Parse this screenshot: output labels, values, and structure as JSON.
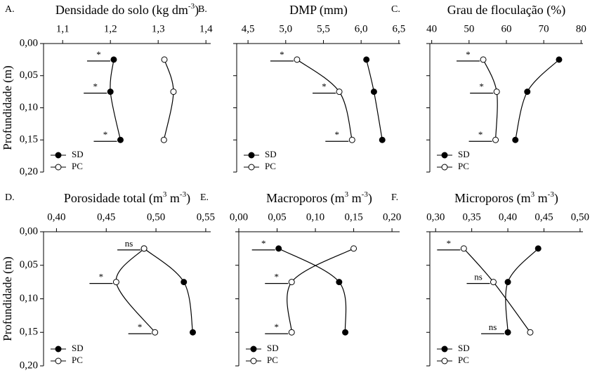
{
  "chart_data": [
    {
      "type": "line",
      "panel_label": "A.",
      "title": [
        {
          "text": "Densidade do solo (kg dm"
        },
        {
          "sup": "-3"
        },
        {
          "text": ")"
        }
      ],
      "y_label": "Profundidade (m)",
      "depths": [
        0.025,
        0.075,
        0.15
      ],
      "xlim": [
        1.06,
        1.41
      ],
      "xticks": [
        {
          "value": 1.1,
          "label": "1,1"
        },
        {
          "value": 1.2,
          "label": "1,2"
        },
        {
          "value": 1.3,
          "label": "1,3"
        },
        {
          "value": 1.4,
          "label": "1,4"
        }
      ],
      "ylim": [
        0,
        0.2
      ],
      "y_inverted": true,
      "yticks": [
        {
          "value": 0,
          "label": "0,00"
        },
        {
          "value": 0.05,
          "label": "0,05"
        },
        {
          "value": 0.1,
          "label": "0,10"
        },
        {
          "value": 0.15,
          "label": "0,15"
        },
        {
          "value": 0.2,
          "label": "0,20"
        }
      ],
      "series": [
        {
          "name": "SD",
          "color": "#000000",
          "filled": true,
          "values": [
            1.207,
            1.2,
            1.221
          ]
        },
        {
          "name": "PC",
          "color": "#000000",
          "filled": false,
          "values": [
            1.313,
            1.332,
            1.312
          ]
        }
      ],
      "significance": [
        "*",
        "*",
        "*"
      ],
      "legend": "lower left"
    },
    {
      "type": "line",
      "panel_label": "B.",
      "title": [
        {
          "text": "DMP (mm)"
        }
      ],
      "depths": [
        0.025,
        0.075,
        0.15
      ],
      "xlim": [
        4.35,
        6.52
      ],
      "xticks": [
        {
          "value": 4.5,
          "label": "4,5"
        },
        {
          "value": 5,
          "label": "5,0"
        },
        {
          "value": 5.5,
          "label": "5,5"
        },
        {
          "value": 6,
          "label": "6,0"
        },
        {
          "value": 6.5,
          "label": "6,5"
        }
      ],
      "ylim": [
        0,
        0.2
      ],
      "y_inverted": true,
      "yticks": [
        0,
        0.05,
        0.1,
        0.15,
        0.2
      ],
      "series": [
        {
          "name": "SD",
          "color": "#000000",
          "filled": true,
          "values": [
            6.07,
            6.17,
            6.28
          ]
        },
        {
          "name": "PC",
          "color": "#000000",
          "filled": false,
          "values": [
            5.15,
            5.71,
            5.88
          ]
        }
      ],
      "significance": [
        "*",
        "*",
        "*"
      ],
      "legend": "lower left"
    },
    {
      "type": "line",
      "panel_label": "C.",
      "title": [
        {
          "text": "Grau de floculação (%)"
        }
      ],
      "depths": [
        0.025,
        0.075,
        0.15
      ],
      "xlim": [
        39.5,
        80.5
      ],
      "xticks": [
        40,
        50,
        60,
        70,
        80
      ],
      "ylim": [
        0,
        0.2
      ],
      "y_inverted": true,
      "yticks": [
        0,
        0.05,
        0.1,
        0.15,
        0.2
      ],
      "series": [
        {
          "name": "SD",
          "color": "#000000",
          "filled": true,
          "values": [
            74.1,
            65.6,
            62.4
          ]
        },
        {
          "name": "PC",
          "color": "#000000",
          "filled": false,
          "values": [
            53.8,
            57.4,
            57.1
          ]
        }
      ],
      "significance": [
        "*",
        "*",
        "*"
      ],
      "legend": "lower left"
    },
    {
      "type": "line",
      "panel_label": "D.",
      "title": [
        {
          "text": "Porosidade total (m"
        },
        {
          "sup": "3"
        },
        {
          "text": " m"
        },
        {
          "sup": "-3"
        },
        {
          "text": ")"
        }
      ],
      "y_label": "Profundidade (m)",
      "depths": [
        0.025,
        0.075,
        0.15
      ],
      "xlim": [
        0.387,
        0.555
      ],
      "xticks": [
        {
          "value": 0.4,
          "label": "0,40"
        },
        {
          "value": 0.45,
          "label": "0,45"
        },
        {
          "value": 0.5,
          "label": "0,50"
        },
        {
          "value": 0.55,
          "label": "0,55"
        }
      ],
      "ylim": [
        0,
        0.2
      ],
      "y_inverted": true,
      "yticks": [
        {
          "value": 0,
          "label": "0,00"
        },
        {
          "value": 0.05,
          "label": "0,05"
        },
        {
          "value": 0.1,
          "label": "0,10"
        },
        {
          "value": 0.15,
          "label": "0,15"
        },
        {
          "value": 0.2,
          "label": "0,20"
        }
      ],
      "series": [
        {
          "name": "SD",
          "color": "#000000",
          "filled": true,
          "values": [
            0.488,
            0.528,
            0.537
          ]
        },
        {
          "name": "PC",
          "color": "#000000",
          "filled": false,
          "values": [
            0.488,
            0.46,
            0.499
          ]
        }
      ],
      "significance": [
        "ns",
        "*",
        "*"
      ],
      "legend": "lower left"
    },
    {
      "type": "line",
      "panel_label": "E.",
      "title": [
        {
          "text": "Macroporos (m"
        },
        {
          "sup": "3"
        },
        {
          "text": " m"
        },
        {
          "sup": "-3"
        },
        {
          "text": ")"
        }
      ],
      "depths": [
        0.025,
        0.075,
        0.15
      ],
      "xlim": [
        0,
        0.21
      ],
      "xticks": [
        {
          "value": 0,
          "label": "0,00"
        },
        {
          "value": 0.05,
          "label": "0,05"
        },
        {
          "value": 0.1,
          "label": "0,10"
        },
        {
          "value": 0.15,
          "label": "0,15"
        },
        {
          "value": 0.2,
          "label": "0,20"
        }
      ],
      "ylim": [
        0,
        0.2
      ],
      "y_inverted": true,
      "yticks": [
        0,
        0.05,
        0.1,
        0.15,
        0.2
      ],
      "series": [
        {
          "name": "SD",
          "color": "#000000",
          "filled": true,
          "values": [
            0.052,
            0.131,
            0.139
          ]
        },
        {
          "name": "PC",
          "color": "#000000",
          "filled": false,
          "values": [
            0.15,
            0.069,
            0.069
          ]
        }
      ],
      "significance": [
        "*",
        "*",
        "*"
      ],
      "legend": "lower left"
    },
    {
      "type": "line",
      "panel_label": "F.",
      "title": [
        {
          "text": "Microporos (m"
        },
        {
          "sup": "3"
        },
        {
          "text": " m"
        },
        {
          "sup": "-3"
        },
        {
          "text": ")"
        }
      ],
      "depths": [
        0.025,
        0.075,
        0.15
      ],
      "xlim": [
        0.292,
        0.504
      ],
      "xticks": [
        {
          "value": 0.3,
          "label": "0,30"
        },
        {
          "value": 0.35,
          "label": "0,35"
        },
        {
          "value": 0.4,
          "label": "0,40"
        },
        {
          "value": 0.45,
          "label": "0,45"
        },
        {
          "value": 0.5,
          "label": "0,50"
        }
      ],
      "ylim": [
        0,
        0.2
      ],
      "y_inverted": true,
      "yticks": [
        0,
        0.05,
        0.1,
        0.15,
        0.2
      ],
      "series": [
        {
          "name": "SD",
          "color": "#000000",
          "filled": true,
          "values": [
            0.442,
            0.4,
            0.4
          ]
        },
        {
          "name": "PC",
          "color": "#000000",
          "filled": false,
          "values": [
            0.339,
            0.38,
            0.431
          ]
        }
      ],
      "significance": [
        "*",
        "ns",
        "ns"
      ],
      "legend": "lower left"
    }
  ]
}
